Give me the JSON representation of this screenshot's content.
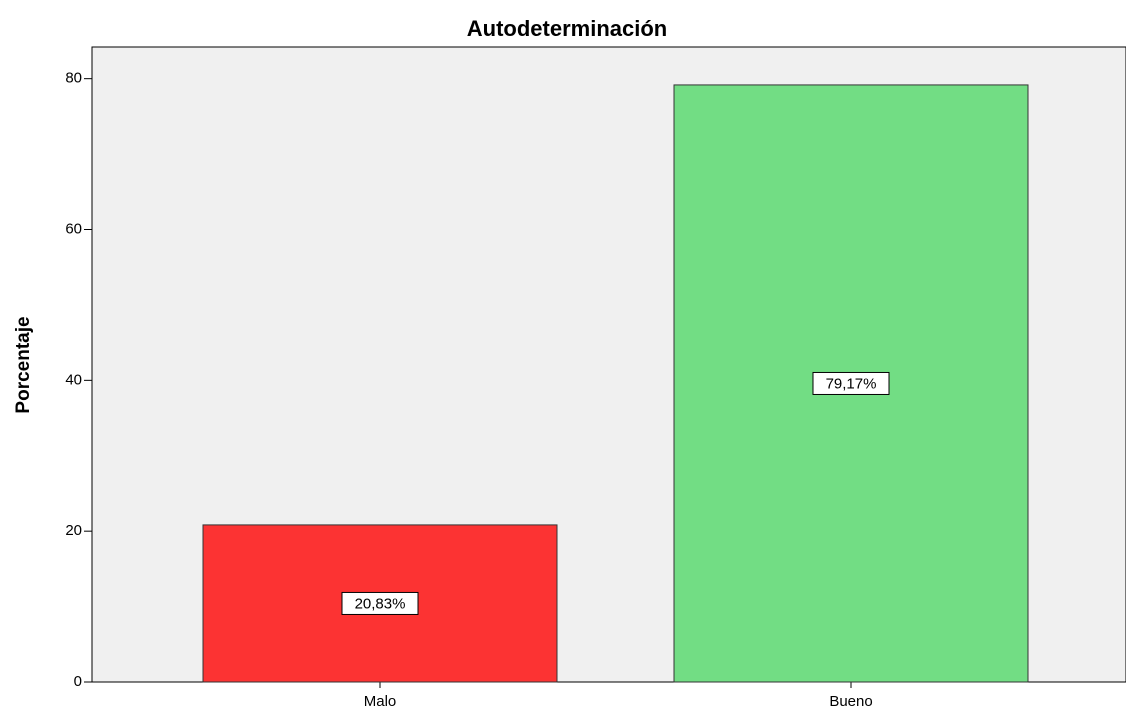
{
  "chart_data": {
    "type": "bar",
    "title": "Autodeterminación",
    "y_label": "Porcentaje",
    "categories": [
      "Malo",
      "Bueno"
    ],
    "values": [
      20.83,
      79.17
    ],
    "value_labels": [
      "20,83%",
      "79,17%"
    ],
    "colors": [
      "#fc3333",
      "#72dd84"
    ],
    "ylim": [
      0,
      84.2
    ],
    "yticks": [
      0,
      20,
      40,
      60,
      80
    ],
    "grid": false
  }
}
